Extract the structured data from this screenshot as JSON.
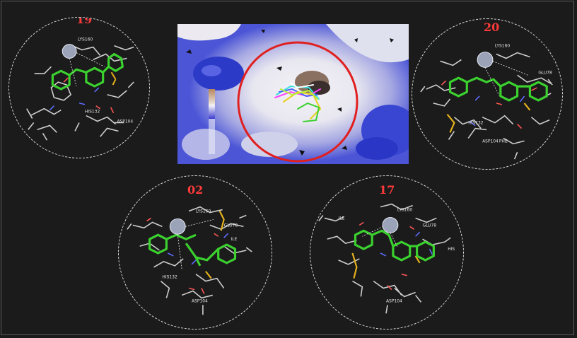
{
  "panels": [
    {
      "id": "19",
      "label": "19"
    },
    {
      "id": "20",
      "label": "20"
    },
    {
      "id": "02",
      "label": "02"
    },
    {
      "id": "17",
      "label": "17"
    }
  ],
  "colors": {
    "background": "#1b1b1b",
    "label": "#ff3b3b",
    "ligand": "#3bd12f",
    "sulfur": "#e6b21c",
    "metal_ion": "#9aa3b8",
    "binding_site_ring": "#e02020",
    "surface_positive": "#2233c9",
    "surface_negative": "#a1785a"
  }
}
